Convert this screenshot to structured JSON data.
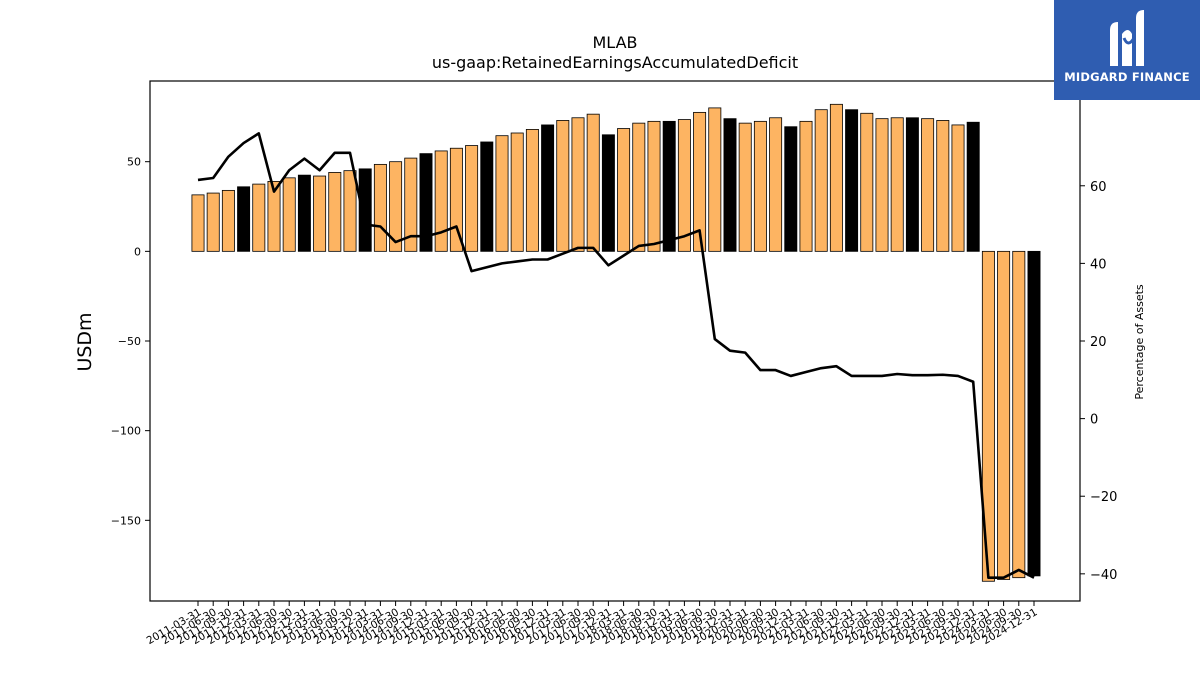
{
  "brand": {
    "name": "MIDGARD FINANCE",
    "icon": "midgard-logo-icon",
    "color": "#2f5db1"
  },
  "chart_data": {
    "type": "bar",
    "title": "MLAB",
    "subtitle": "us-gaap:RetainedEarningsAccumulatedDeficit",
    "ylabel": "USDm",
    "ylabel_right": "Percentage of Assets",
    "ylim": [
      -195,
      95
    ],
    "ylim_right": [
      -47,
      87
    ],
    "yticks": [
      -150,
      -100,
      -50,
      0,
      50
    ],
    "yticks_right": [
      -40,
      -20,
      0,
      20,
      40,
      60
    ],
    "grid": false,
    "bar_color": "#fdb462",
    "q4_bar_color": "#000000",
    "line_color": "#000000",
    "x": [
      "2011-03-31",
      "2011-06-30",
      "2011-09-30",
      "2011-12-31",
      "2012-03-31",
      "2012-06-30",
      "2012-09-30",
      "2012-12-31",
      "2013-03-31",
      "2013-06-30",
      "2013-09-30",
      "2013-12-31",
      "2014-03-31",
      "2014-06-30",
      "2014-09-30",
      "2014-12-31",
      "2015-03-31",
      "2015-06-30",
      "2015-09-30",
      "2015-12-31",
      "2016-03-31",
      "2016-06-30",
      "2016-09-30",
      "2016-12-31",
      "2017-03-31",
      "2017-06-30",
      "2017-09-30",
      "2017-12-31",
      "2018-03-31",
      "2018-06-30",
      "2018-09-30",
      "2018-12-31",
      "2019-03-31",
      "2019-06-30",
      "2019-09-30",
      "2019-12-31",
      "2020-03-31",
      "2020-06-30",
      "2020-09-30",
      "2020-12-31",
      "2021-03-31",
      "2021-06-30",
      "2021-09-30",
      "2021-12-31",
      "2022-03-31",
      "2022-06-30",
      "2022-09-30",
      "2022-12-31",
      "2023-03-31",
      "2023-06-30",
      "2023-09-30",
      "2023-12-31",
      "2024-03-31",
      "2024-06-30",
      "2024-09-30",
      "2024-12-31"
    ],
    "series": [
      {
        "name": "",
        "kind": "bar",
        "values": [
          31.5,
          32.5,
          34,
          36,
          37.5,
          39,
          41,
          42.5,
          42,
          44,
          45,
          46,
          48.5,
          50,
          52,
          54.5,
          56,
          57.5,
          59,
          61,
          64.5,
          66,
          68,
          70.5,
          73,
          74.5,
          76.5,
          65,
          68.5,
          71.5,
          72.5,
          72.5,
          73.5,
          77.5,
          80,
          74,
          71.5,
          72.5,
          74.5,
          69.5,
          72.5,
          79,
          82,
          79,
          77,
          74,
          74.5,
          74.5,
          74,
          73,
          70.5,
          72,
          -184,
          -183,
          -182,
          -181
        ]
      },
      {
        "name": "",
        "kind": "line",
        "axis": "right",
        "values": [
          61.5,
          62,
          67.5,
          71,
          73.5,
          58.5,
          64,
          67,
          64,
          68.5,
          68.5,
          50,
          49.5,
          45.5,
          47,
          47,
          48,
          49.5,
          38,
          39,
          40,
          40.5,
          41,
          41,
          42.5,
          44,
          44,
          39.5,
          42,
          44.5,
          45,
          46,
          47,
          48.5,
          20.5,
          17.5,
          17,
          12.5,
          12.5,
          11,
          12,
          13,
          13.5,
          11,
          11,
          11,
          11.5,
          11.2,
          11.2,
          11.3,
          11,
          9.5,
          -41,
          -41,
          -39,
          -41
        ]
      }
    ]
  }
}
